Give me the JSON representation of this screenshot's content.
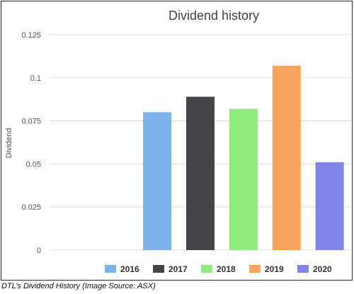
{
  "chart_data": {
    "type": "bar",
    "title": "Dividend history",
    "xlabel": "",
    "ylabel": "Dividend",
    "ylim": [
      0,
      0.125
    ],
    "yticks": [
      0,
      0.025,
      0.05,
      0.075,
      0.1,
      0.125
    ],
    "ytick_labels": [
      "0",
      "0.025",
      "0.05",
      "0.075",
      "0.1",
      "0.125"
    ],
    "grid": true,
    "legend_position": "bottom",
    "slots": 7,
    "bar_slot_start": 2,
    "series": [
      {
        "name": "2016",
        "value": 0.08,
        "color": "#7cb4ea"
      },
      {
        "name": "2017",
        "value": 0.089,
        "color": "#434348"
      },
      {
        "name": "2018",
        "value": 0.082,
        "color": "#90ed7d"
      },
      {
        "name": "2019",
        "value": 0.107,
        "color": "#f7a35c"
      },
      {
        "name": "2020",
        "value": 0.051,
        "color": "#8085e9"
      }
    ]
  },
  "caption": "DTL’s Dividend History (Image Source: ASX)"
}
